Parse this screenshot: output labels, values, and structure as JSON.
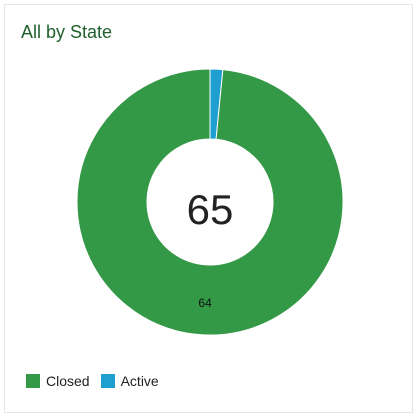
{
  "widget": {
    "title": "All by State"
  },
  "chart_data": {
    "type": "pie",
    "style": "donut",
    "total_label": "65",
    "series": [
      {
        "name": "Closed",
        "value": 64,
        "color": "#339947",
        "data_label": "64"
      },
      {
        "name": "Active",
        "value": 1,
        "color": "#1e9fd0",
        "data_label": ""
      }
    ],
    "legend_position": "bottom-left"
  }
}
